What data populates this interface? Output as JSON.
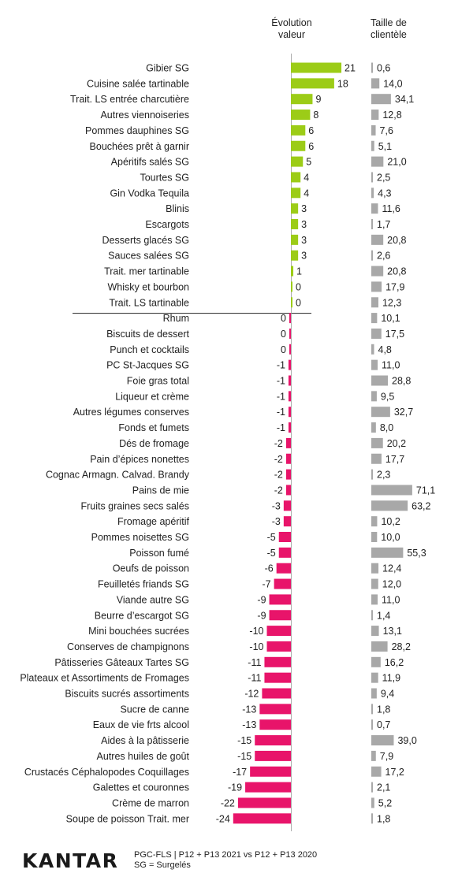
{
  "headers": {
    "evolution": "Évolution\nvaleur",
    "clientele": "Taille de\nclientèle"
  },
  "colors": {
    "positive": "#9ccc17",
    "negative": "#e8146a",
    "clientele": "#a8a8a8",
    "axis": "#999999"
  },
  "chart_data": {
    "type": "bar",
    "series": [
      {
        "name": "Évolution valeur"
      },
      {
        "name": "Taille de clientèle"
      }
    ],
    "rows": [
      {
        "label": "Gibier SG",
        "evo": 21,
        "taille": "0,6",
        "t": 0.6
      },
      {
        "label": "Cuisine salée tartinable",
        "evo": 18,
        "taille": "14,0",
        "t": 14.0
      },
      {
        "label": "Trait. LS entrée charcutière",
        "evo": 9,
        "taille": "34,1",
        "t": 34.1
      },
      {
        "label": "Autres viennoiseries",
        "evo": 8,
        "taille": "12,8",
        "t": 12.8
      },
      {
        "label": "Pommes dauphines SG",
        "evo": 6,
        "taille": "7,6",
        "t": 7.6
      },
      {
        "label": "Bouchées prêt à garnir",
        "evo": 6,
        "taille": "5,1",
        "t": 5.1
      },
      {
        "label": "Apéritifs salés SG",
        "evo": 5,
        "taille": "21,0",
        "t": 21.0
      },
      {
        "label": "Tourtes SG",
        "evo": 4,
        "taille": "2,5",
        "t": 2.5
      },
      {
        "label": "Gin Vodka Tequila",
        "evo": 4,
        "taille": "4,3",
        "t": 4.3
      },
      {
        "label": "Blinis",
        "evo": 3,
        "taille": "11,6",
        "t": 11.6
      },
      {
        "label": "Escargots",
        "evo": 3,
        "taille": "1,7",
        "t": 1.7
      },
      {
        "label": "Desserts glacés SG",
        "evo": 3,
        "taille": "20,8",
        "t": 20.8
      },
      {
        "label": "Sauces salées SG",
        "evo": 3,
        "taille": "2,6",
        "t": 2.6
      },
      {
        "label": "Trait. mer tartinable",
        "evo": 1,
        "taille": "20,8",
        "t": 20.8
      },
      {
        "label": "Whisky et bourbon",
        "evo": 0,
        "taille": "17,9",
        "t": 17.9
      },
      {
        "label": "Trait. LS tartinable",
        "evo": 0,
        "taille": "12,3",
        "t": 12.3
      },
      {
        "label": "Rhum",
        "evo": 0,
        "taille": "10,1",
        "t": 10.1
      },
      {
        "label": "Biscuits de dessert",
        "evo": 0,
        "taille": "17,5",
        "t": 17.5
      },
      {
        "label": "Punch et cocktails",
        "evo": 0,
        "taille": "4,8",
        "t": 4.8
      },
      {
        "label": "PC St-Jacques SG",
        "evo": -1,
        "taille": "11,0",
        "t": 11.0
      },
      {
        "label": "Foie gras total",
        "evo": -1,
        "taille": "28,8",
        "t": 28.8
      },
      {
        "label": "Liqueur et crème",
        "evo": -1,
        "taille": "9,5",
        "t": 9.5
      },
      {
        "label": "Autres légumes conserves",
        "evo": -1,
        "taille": "32,7",
        "t": 32.7
      },
      {
        "label": "Fonds et fumets",
        "evo": -1,
        "taille": "8,0",
        "t": 8.0
      },
      {
        "label": "Dés de fromage",
        "evo": -2,
        "taille": "20,2",
        "t": 20.2
      },
      {
        "label": "Pain d’épices nonettes",
        "evo": -2,
        "taille": "17,7",
        "t": 17.7
      },
      {
        "label": "Cognac Armagn. Calvad. Brandy",
        "evo": -2,
        "taille": "2,3",
        "t": 2.3
      },
      {
        "label": "Pains de mie",
        "evo": -2,
        "taille": "71,1",
        "t": 71.1
      },
      {
        "label": "Fruits graines secs salés",
        "evo": -3,
        "taille": "63,2",
        "t": 63.2
      },
      {
        "label": "Fromage apéritif",
        "evo": -3,
        "taille": "10,2",
        "t": 10.2
      },
      {
        "label": "Pommes noisettes SG",
        "evo": -5,
        "taille": "10,0",
        "t": 10.0
      },
      {
        "label": "Poisson fumé",
        "evo": -5,
        "taille": "55,3",
        "t": 55.3
      },
      {
        "label": "Oeufs de poisson",
        "evo": -6,
        "taille": "12,4",
        "t": 12.4
      },
      {
        "label": "Feuilletés friands SG",
        "evo": -7,
        "taille": "12,0",
        "t": 12.0
      },
      {
        "label": "Viande autre SG",
        "evo": -9,
        "taille": "11,0",
        "t": 11.0
      },
      {
        "label": "Beurre d’escargot SG",
        "evo": -9,
        "taille": "1,4",
        "t": 1.4
      },
      {
        "label": "Mini bouchées sucrées",
        "evo": -10,
        "taille": "13,1",
        "t": 13.1
      },
      {
        "label": "Conserves de champignons",
        "evo": -10,
        "taille": "28,2",
        "t": 28.2
      },
      {
        "label": "Pâtisseries Gâteaux Tartes SG",
        "evo": -11,
        "taille": "16,2",
        "t": 16.2
      },
      {
        "label": "Plateaux et Assortiments de Fromages",
        "evo": -11,
        "taille": "11,9",
        "t": 11.9
      },
      {
        "label": "Biscuits sucrés assortiments",
        "evo": -12,
        "taille": "9,4",
        "t": 9.4
      },
      {
        "label": "Sucre de canne",
        "evo": -13,
        "taille": "1,8",
        "t": 1.8
      },
      {
        "label": "Eaux de vie frts alcool",
        "evo": -13,
        "taille": "0,7",
        "t": 0.7
      },
      {
        "label": "Aides à la pâtisserie",
        "evo": -15,
        "taille": "39,0",
        "t": 39.0
      },
      {
        "label": "Autres huiles de goût",
        "evo": -15,
        "taille": "7,9",
        "t": 7.9
      },
      {
        "label": "Crustacés Céphalopodes Coquillages",
        "evo": -17,
        "taille": "17,2",
        "t": 17.2
      },
      {
        "label": "Galettes et couronnes",
        "evo": -19,
        "taille": "2,1",
        "t": 2.1
      },
      {
        "label": "Crème de marron",
        "evo": -22,
        "taille": "5,2",
        "t": 5.2
      },
      {
        "label": "Soupe de poisson Trait. mer",
        "evo": -24,
        "taille": "1,8",
        "t": 1.8
      }
    ]
  },
  "footer": {
    "brand": "KANTAR",
    "source": "PGC-FLS | P12 + P13 2021 vs P12 + P13 2020",
    "note": "SG = Surgelés"
  }
}
